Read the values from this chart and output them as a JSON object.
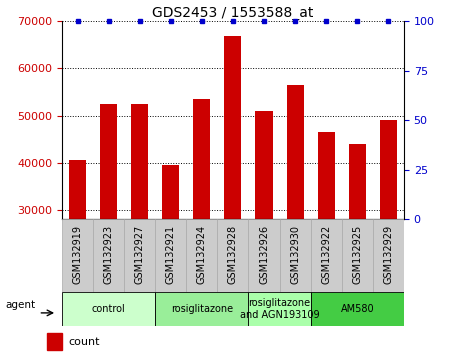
{
  "title": "GDS2453 / 1553588_at",
  "samples": [
    "GSM132919",
    "GSM132923",
    "GSM132927",
    "GSM132921",
    "GSM132924",
    "GSM132928",
    "GSM132926",
    "GSM132930",
    "GSM132922",
    "GSM132925",
    "GSM132929"
  ],
  "counts": [
    40500,
    52500,
    52500,
    39500,
    53500,
    66800,
    51000,
    56500,
    46500,
    44000,
    49000
  ],
  "percentiles": [
    100,
    100,
    100,
    100,
    100,
    100,
    100,
    100,
    100,
    100,
    100
  ],
  "ylim_left": [
    28000,
    70000
  ],
  "ylim_right": [
    0,
    100
  ],
  "yticks_left": [
    30000,
    40000,
    50000,
    60000,
    70000
  ],
  "yticks_right": [
    0,
    25,
    50,
    75,
    100
  ],
  "bar_color": "#cc0000",
  "dot_color": "#0000cc",
  "bar_bottom": 28000,
  "groups": [
    {
      "label": "control",
      "start": 0,
      "end": 2,
      "color": "#ccffcc"
    },
    {
      "label": "rosiglitazone",
      "start": 3,
      "end": 5,
      "color": "#99ee99"
    },
    {
      "label": "rosiglitazone\nand AGN193109",
      "start": 6,
      "end": 7,
      "color": "#aaffaa"
    },
    {
      "label": "AM580",
      "start": 8,
      "end": 10,
      "color": "#44cc44"
    }
  ],
  "legend_count_color": "#cc0000",
  "legend_pct_color": "#0000cc",
  "tick_label_fontsize": 7,
  "group_label_fontsize": 7,
  "title_fontsize": 10,
  "sample_box_color": "#cccccc",
  "sample_box_edge_color": "#ffffff"
}
